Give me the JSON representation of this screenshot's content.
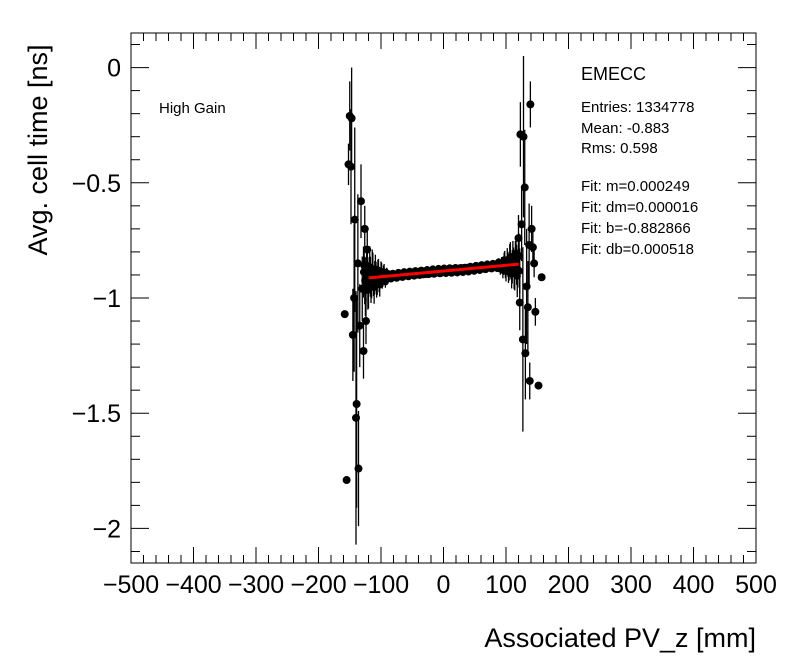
{
  "chart_data": {
    "type": "scatter",
    "xlabel": "Associated PV_z [mm]",
    "ylabel": "Avg. cell time [ns]",
    "xlim": [
      -500,
      500
    ],
    "ylim": [
      -2.15,
      0.15
    ],
    "x_ticks": [
      -500,
      -400,
      -300,
      -200,
      -100,
      0,
      100,
      200,
      300,
      400,
      500
    ],
    "x_tick_labels": [
      "−500",
      "−400",
      "−300",
      "−200",
      "−100",
      "0",
      "100",
      "200",
      "300",
      "400",
      "500"
    ],
    "y_ticks": [
      0,
      -0.5,
      -1,
      -1.5,
      -2
    ],
    "y_tick_labels": [
      "0",
      "−0.5",
      "−1",
      "−1.5",
      "−2"
    ],
    "grid": false,
    "annotation": "High Gain",
    "stats_box": {
      "title": "EMECC",
      "entries": "Entries: 1334778",
      "mean": "Mean: -0.883",
      "rms": "Rms: 0.598",
      "fit_m": "Fit: m=0.000249",
      "fit_dm": "Fit: dm=0.000016",
      "fit_b": "Fit: b=-0.882866",
      "fit_db": "Fit: db=0.000518"
    },
    "fit_line": {
      "m": 0.000249,
      "b": -0.882866,
      "x_range": [
        -120,
        120
      ],
      "color": "#ff0000"
    },
    "outlier_points": [
      {
        "x": -158,
        "y": -1.07,
        "err": 0.0
      },
      {
        "x": -155,
        "y": -1.79,
        "err": 0.0
      },
      {
        "x": -152,
        "y": -0.42,
        "err": 0.09
      },
      {
        "x": -150,
        "y": -0.21,
        "err": 0.15
      },
      {
        "x": -148,
        "y": -0.43,
        "err": 0.25
      },
      {
        "x": -147,
        "y": -0.22,
        "err": 0.22
      },
      {
        "x": -145,
        "y": -1.16,
        "err": 0.2
      },
      {
        "x": -143,
        "y": -1.0,
        "err": 0.32
      },
      {
        "x": -142,
        "y": -0.66,
        "err": 0.4
      },
      {
        "x": -140,
        "y": -1.52,
        "err": 0.55
      },
      {
        "x": -139,
        "y": -1.46,
        "err": 0.45
      },
      {
        "x": -137,
        "y": -0.85,
        "err": 0.3
      },
      {
        "x": -136,
        "y": -1.74,
        "err": 0.25
      },
      {
        "x": -134,
        "y": -1.12,
        "err": 0.18
      },
      {
        "x": -132,
        "y": -0.58,
        "err": 0.16
      },
      {
        "x": -130,
        "y": -0.96,
        "err": 0.14
      },
      {
        "x": -128,
        "y": -1.23,
        "err": 0.12
      },
      {
        "x": -126,
        "y": -0.7,
        "err": 0.1
      },
      {
        "x": -124,
        "y": -1.1,
        "err": 0.1
      },
      {
        "x": -122,
        "y": -0.79,
        "err": 0.08
      },
      {
        "x": 120,
        "y": -0.74,
        "err": 0.1
      },
      {
        "x": 122,
        "y": -1.02,
        "err": 0.12
      },
      {
        "x": 123,
        "y": -0.29,
        "err": 0.14
      },
      {
        "x": 125,
        "y": -0.68,
        "err": 0.16
      },
      {
        "x": 127,
        "y": -1.18,
        "err": 0.4
      },
      {
        "x": 128,
        "y": -0.3,
        "err": 0.35
      },
      {
        "x": 130,
        "y": -0.52,
        "err": 0.25
      },
      {
        "x": 131,
        "y": -1.24,
        "err": 0.2
      },
      {
        "x": 133,
        "y": -0.95,
        "err": 0.25
      },
      {
        "x": 135,
        "y": -1.04,
        "err": 0.2
      },
      {
        "x": 137,
        "y": -0.77,
        "err": 0.18
      },
      {
        "x": 138,
        "y": -1.36,
        "err": 0.08
      },
      {
        "x": 139,
        "y": -0.16,
        "err": 0.1
      },
      {
        "x": 141,
        "y": -0.7,
        "err": 0.1
      },
      {
        "x": 143,
        "y": -0.78,
        "err": 0.08
      },
      {
        "x": 145,
        "y": -0.85,
        "err": 0.06
      },
      {
        "x": 147,
        "y": -1.06,
        "err": 0.06
      },
      {
        "x": 152,
        "y": -1.38,
        "err": 0.0
      },
      {
        "x": 157,
        "y": -0.91,
        "err": 0.0
      }
    ]
  }
}
